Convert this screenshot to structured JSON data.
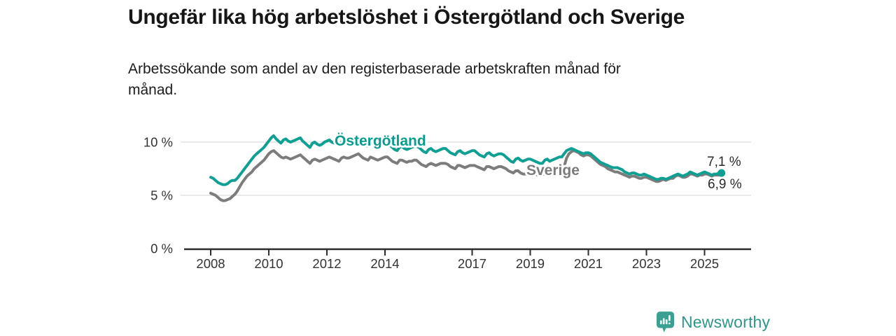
{
  "header": {
    "title": "Ungefär lika hög arbetslöshet i Östergötland och Sverige",
    "subtitle_line1": "Arbetssökande som andel av den registerbaserade arbetskraften månad för",
    "subtitle_line2": "månad."
  },
  "footer": {
    "brand": "Newsworthy",
    "logo_icon": "bar-chart-speech-bubble-icon",
    "brand_color": "#2f968b",
    "icon_color": "#3aa192"
  },
  "chart_data": {
    "type": "line",
    "title": "Ungefär lika hög arbetslöshet i Östergötland och Sverige",
    "subtitle": "Arbetssökande som andel av den registerbaserade arbetskraften månad för månad.",
    "unit": "%",
    "x_start": "2008-01",
    "x_end": "2025-08",
    "x_step": "month",
    "grid": "horizontal-only",
    "legend_position": "inline-labels",
    "ylim": [
      0,
      11.5
    ],
    "y_ticks": [
      {
        "value": 0,
        "label": "0 %"
      },
      {
        "value": 5,
        "label": "5 %"
      },
      {
        "value": 10,
        "label": "10 %"
      }
    ],
    "x_ticks": [
      {
        "year": 2008,
        "label": "2008"
      },
      {
        "year": 2010,
        "label": "2010"
      },
      {
        "year": 2012,
        "label": "2012"
      },
      {
        "year": 2014,
        "label": "2014"
      },
      {
        "year": 2017,
        "label": "2017"
      },
      {
        "year": 2019,
        "label": "2019"
      },
      {
        "year": 2021,
        "label": "2021"
      },
      {
        "year": 2023,
        "label": "2023"
      },
      {
        "year": 2025,
        "label": "2025"
      }
    ],
    "series": [
      {
        "name": "Östergötland",
        "color": "#10a093",
        "label_color": "#0b9c8f",
        "end_value_label": "7,1 %",
        "values": [
          6.7,
          6.6,
          6.4,
          6.2,
          6.1,
          6.0,
          6.0,
          6.1,
          6.3,
          6.4,
          6.4,
          6.6,
          6.9,
          7.2,
          7.5,
          7.8,
          8.1,
          8.4,
          8.7,
          8.9,
          9.1,
          9.3,
          9.5,
          9.8,
          10.1,
          10.4,
          10.6,
          10.3,
          10.1,
          9.9,
          10.2,
          10.3,
          10.1,
          10.0,
          10.1,
          10.2,
          10.3,
          10.4,
          10.1,
          9.9,
          9.7,
          9.5,
          9.9,
          10.0,
          9.8,
          9.7,
          9.8,
          10.0,
          10.1,
          10.2,
          10.0,
          9.9,
          9.8,
          9.7,
          10.0,
          10.1,
          9.9,
          9.9,
          10.0,
          10.1,
          10.2,
          10.2,
          10.1,
          9.9,
          9.7,
          9.6,
          9.9,
          9.8,
          9.6,
          9.5,
          9.6,
          9.7,
          9.8,
          9.8,
          9.7,
          9.5,
          9.3,
          9.2,
          9.5,
          9.6,
          9.4,
          9.3,
          9.4,
          9.5,
          9.6,
          9.6,
          9.5,
          9.3,
          9.1,
          9.0,
          9.3,
          9.4,
          9.2,
          9.1,
          9.2,
          9.3,
          9.4,
          9.4,
          9.2,
          9.0,
          8.9,
          8.8,
          9.1,
          9.2,
          9.0,
          8.9,
          9.0,
          9.1,
          9.2,
          9.2,
          9.0,
          8.8,
          8.7,
          8.6,
          8.9,
          9.0,
          8.8,
          8.7,
          8.8,
          8.9,
          8.9,
          8.8,
          8.6,
          8.4,
          8.2,
          8.1,
          8.4,
          8.5,
          8.3,
          8.2,
          8.3,
          8.4,
          8.4,
          8.3,
          8.2,
          8.1,
          8.0,
          8.0,
          8.3,
          8.4,
          8.2,
          8.3,
          8.4,
          8.5,
          8.6,
          8.6,
          8.9,
          9.2,
          9.3,
          9.4,
          9.3,
          9.2,
          9.1,
          9.0,
          8.9,
          9.0,
          9.0,
          8.9,
          8.7,
          8.5,
          8.3,
          8.1,
          8.0,
          7.9,
          7.8,
          7.7,
          7.6,
          7.6,
          7.6,
          7.5,
          7.4,
          7.2,
          7.1,
          7.0,
          7.1,
          7.1,
          7.0,
          6.9,
          6.9,
          7.0,
          6.9,
          6.8,
          6.7,
          6.6,
          6.5,
          6.5,
          6.6,
          6.6,
          6.5,
          6.6,
          6.7,
          6.8,
          6.9,
          7.0,
          6.9,
          6.8,
          6.9,
          7.0,
          7.2,
          7.1,
          7.0,
          6.9,
          7.0,
          7.1,
          7.2,
          7.1,
          7.0,
          6.9,
          7.0,
          7.0,
          7.1,
          7.1
        ]
      },
      {
        "name": "Sverige",
        "color": "#7c7c7c",
        "label_color": "#7b7b7b",
        "end_value_label": "6,9 %",
        "values": [
          5.2,
          5.1,
          5.0,
          4.8,
          4.6,
          4.5,
          4.5,
          4.6,
          4.7,
          4.9,
          5.1,
          5.4,
          5.8,
          6.2,
          6.5,
          6.8,
          7.0,
          7.2,
          7.5,
          7.7,
          7.9,
          8.1,
          8.3,
          8.6,
          8.9,
          9.1,
          9.2,
          9.0,
          8.8,
          8.6,
          8.5,
          8.6,
          8.5,
          8.4,
          8.5,
          8.6,
          8.7,
          8.8,
          8.6,
          8.4,
          8.2,
          8.0,
          8.3,
          8.4,
          8.3,
          8.2,
          8.3,
          8.4,
          8.5,
          8.6,
          8.5,
          8.4,
          8.3,
          8.2,
          8.5,
          8.6,
          8.5,
          8.5,
          8.6,
          8.7,
          8.8,
          8.9,
          8.7,
          8.5,
          8.4,
          8.3,
          8.6,
          8.5,
          8.4,
          8.3,
          8.4,
          8.5,
          8.6,
          8.6,
          8.4,
          8.2,
          8.1,
          8.0,
          8.3,
          8.3,
          8.2,
          8.1,
          8.2,
          8.2,
          8.3,
          8.3,
          8.1,
          7.9,
          7.8,
          7.7,
          7.9,
          8.0,
          7.9,
          7.8,
          7.9,
          8.0,
          8.0,
          8.0,
          7.9,
          7.7,
          7.6,
          7.5,
          7.8,
          7.8,
          7.7,
          7.6,
          7.7,
          7.8,
          7.8,
          7.8,
          7.7,
          7.6,
          7.5,
          7.4,
          7.7,
          7.7,
          7.6,
          7.5,
          7.6,
          7.7,
          7.7,
          7.6,
          7.5,
          7.3,
          7.2,
          7.1,
          7.3,
          7.3,
          7.1,
          7.0,
          7.0,
          7.0,
          7.1,
          7.0,
          7.0,
          6.9,
          6.9,
          6.9,
          7.1,
          7.1,
          7.0,
          7.1,
          7.2,
          7.4,
          7.4,
          7.4,
          7.7,
          8.5,
          8.9,
          9.1,
          9.2,
          9.1,
          9.0,
          8.8,
          8.7,
          8.8,
          8.8,
          8.7,
          8.5,
          8.3,
          8.1,
          7.9,
          7.8,
          7.7,
          7.5,
          7.4,
          7.3,
          7.2,
          7.2,
          7.1,
          7.0,
          6.9,
          6.8,
          6.7,
          6.8,
          6.8,
          6.7,
          6.6,
          6.6,
          6.7,
          6.7,
          6.6,
          6.5,
          6.4,
          6.3,
          6.3,
          6.4,
          6.5,
          6.4,
          6.5,
          6.6,
          6.6,
          6.8,
          6.9,
          6.8,
          6.7,
          6.7,
          6.8,
          7.0,
          7.0,
          6.9,
          6.8,
          6.9,
          6.9,
          7.0,
          7.0,
          6.9,
          6.8,
          6.9,
          6.9,
          6.9,
          6.9
        ]
      }
    ],
    "annotations": {
      "ostergotland_label": "Östergötland",
      "sverige_label": "Sverige",
      "end_label_top": "7,1 %",
      "end_label_bottom": "6,9 %"
    }
  }
}
